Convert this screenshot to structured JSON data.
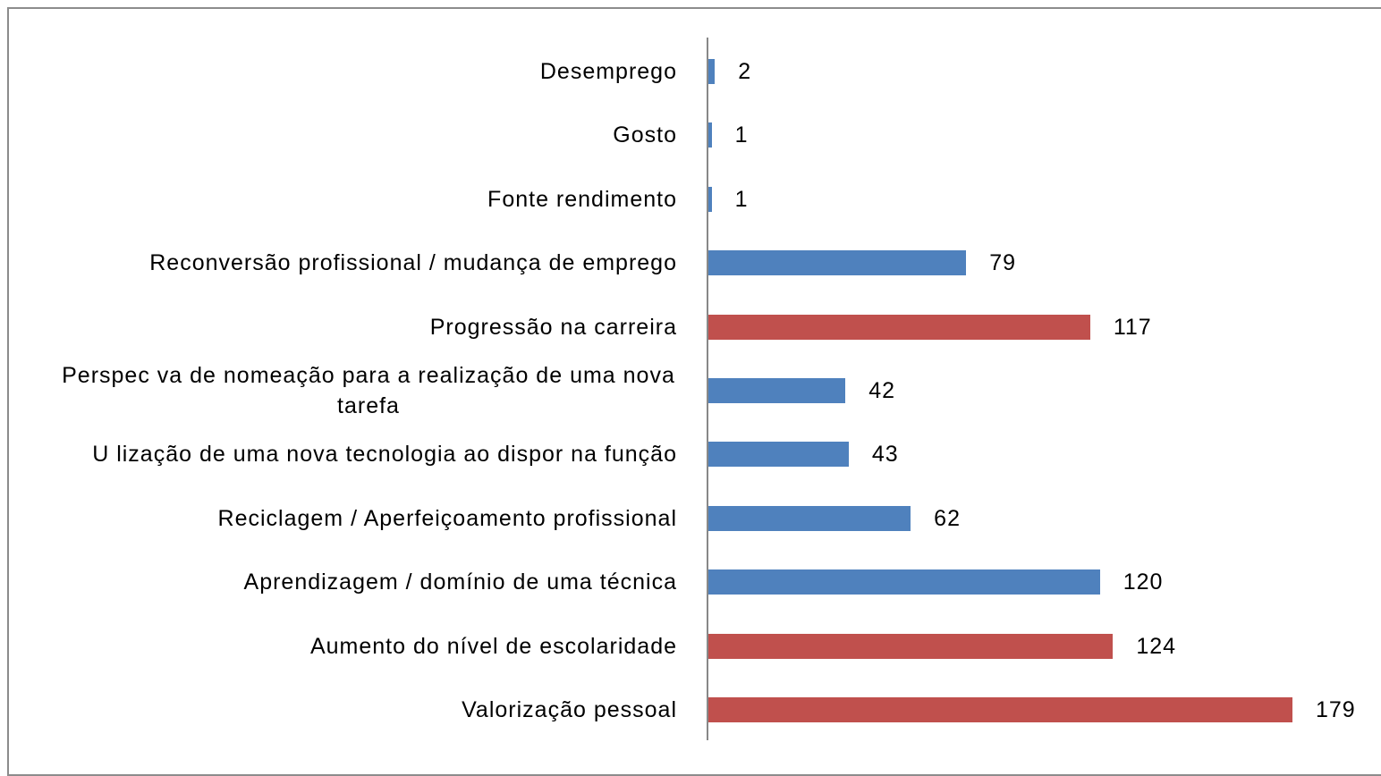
{
  "chart_data": {
    "type": "bar",
    "orientation": "horizontal",
    "categories": [
      "Desemprego",
      "Gosto",
      "Fonte rendimento",
      "Reconversão profissional / mudança de emprego",
      "Progressão na carreira",
      "Perspec va de nomeação para a realização de uma nova tarefa",
      "U lização de uma nova tecnologia ao dispor na função",
      "Reciclagem / Aperfeiçoamento profissional",
      "Aprendizagem / domínio de uma técnica",
      "Aumento do nível de escolaridade",
      "Valorização pessoal"
    ],
    "values": [
      2,
      1,
      1,
      79,
      117,
      42,
      43,
      62,
      120,
      124,
      179
    ],
    "colors": [
      "#4f81bd",
      "#4f81bd",
      "#4f81bd",
      "#4f81bd",
      "#c0504d",
      "#4f81bd",
      "#4f81bd",
      "#4f81bd",
      "#4f81bd",
      "#c0504d",
      "#c0504d"
    ]
  }
}
